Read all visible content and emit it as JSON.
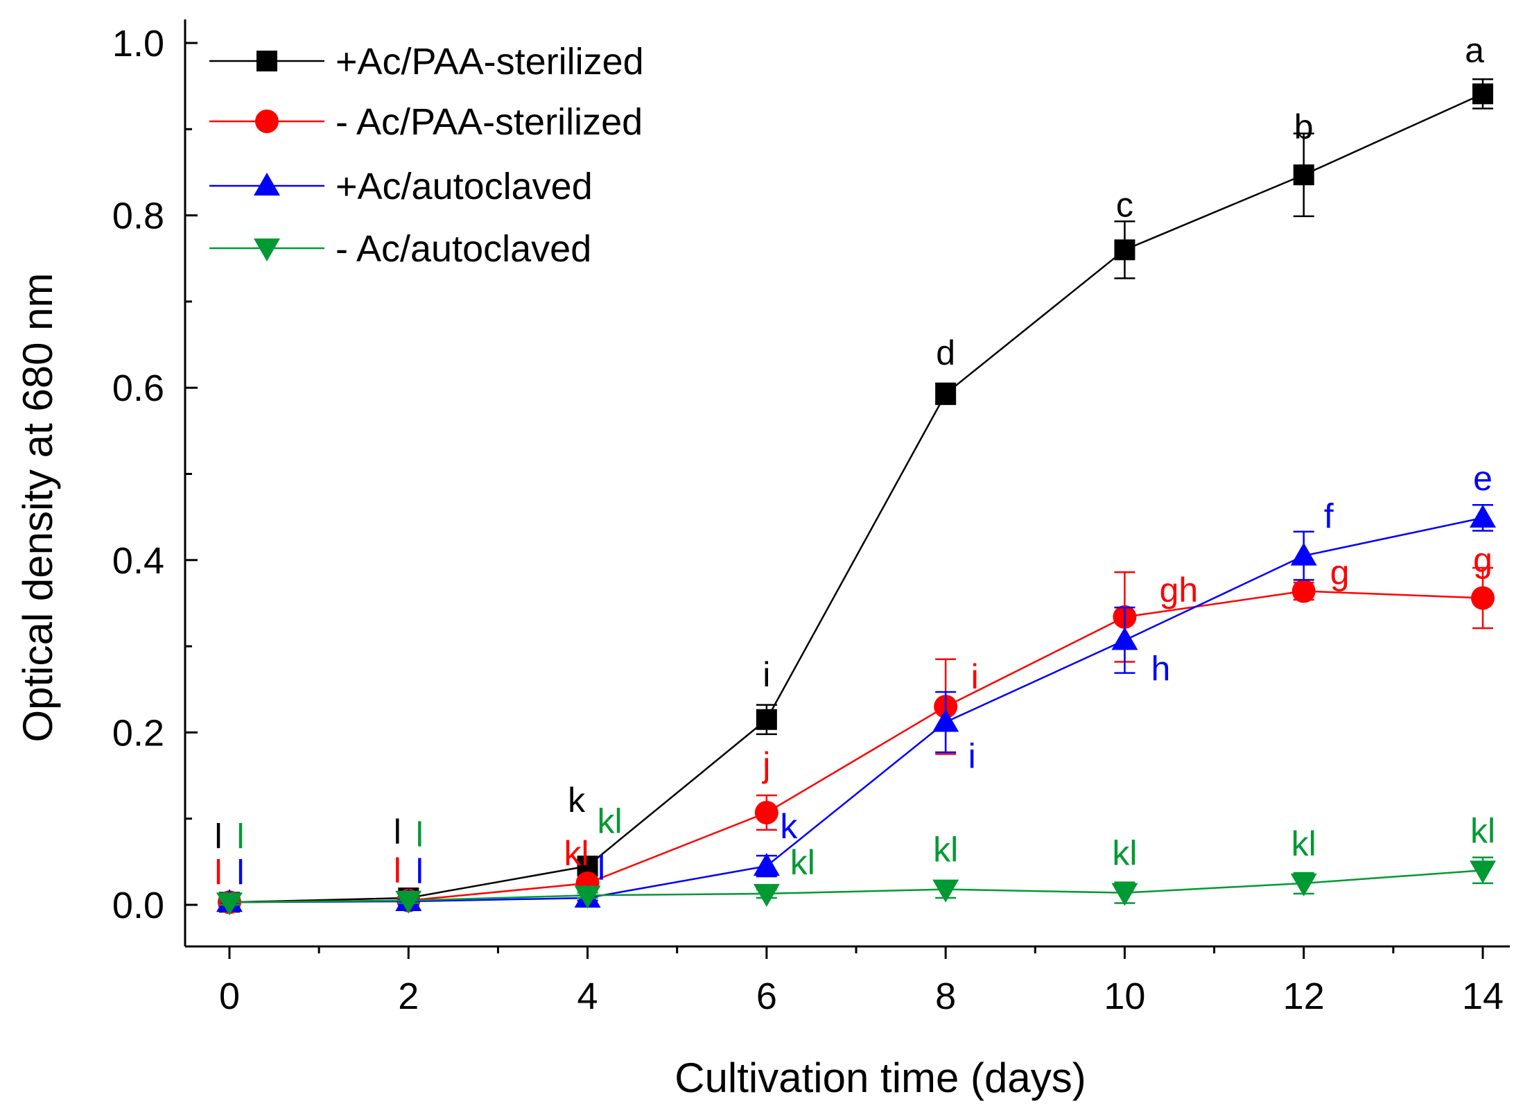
{
  "chart_data": {
    "type": "line",
    "title": "",
    "xlabel": "Cultivation time (days)",
    "ylabel": "Optical density at 680 nm",
    "xlim": [
      -0.5,
      14.3
    ],
    "ylim": [
      -0.05,
      1.0
    ],
    "x_ticks": [
      0,
      2,
      4,
      6,
      8,
      10,
      12,
      14
    ],
    "y_ticks": [
      0.0,
      0.2,
      0.4,
      0.6,
      0.8,
      1.0
    ],
    "x_tick_labels": [
      "0",
      "2",
      "4",
      "6",
      "8",
      "10",
      "12",
      "14"
    ],
    "y_tick_labels": [
      "0.0",
      "0.2",
      "0.4",
      "0.6",
      "0.8",
      "1.0"
    ],
    "legend_position": "top-left",
    "grid": false,
    "x": [
      0,
      2,
      4,
      6,
      8,
      10,
      12,
      14
    ],
    "series": [
      {
        "name": "+Ac/PAA-sterilized",
        "color": "#000000",
        "marker": "square",
        "values": [
          0.003,
          0.008,
          0.045,
          0.215,
          0.593,
          0.76,
          0.847,
          0.941
        ],
        "errors": [
          0.003,
          0.003,
          0.005,
          0.017,
          0.012,
          0.033,
          0.048,
          0.017
        ],
        "letters": [
          "l",
          "l",
          "k",
          "i",
          "d",
          "c",
          "b",
          "a"
        ]
      },
      {
        "name": "- Ac/PAA-sterilized",
        "color": "#ff0000",
        "marker": "circle",
        "values": [
          0.003,
          0.005,
          0.025,
          0.107,
          0.23,
          0.334,
          0.364,
          0.356
        ],
        "errors": [
          0.003,
          0.003,
          0.005,
          0.02,
          0.055,
          0.052,
          0.01,
          0.035
        ],
        "letters": [
          "l",
          "l",
          "kl",
          "j",
          "i",
          "gh",
          "g",
          "g"
        ]
      },
      {
        "name": "+Ac/autoclaved",
        "color": "#0000ff",
        "marker": "triangle-up",
        "values": [
          0.003,
          0.004,
          0.008,
          0.045,
          0.212,
          0.307,
          0.405,
          0.449
        ],
        "errors": [
          0.003,
          0.003,
          0.003,
          0.012,
          0.035,
          0.038,
          0.028,
          0.015
        ],
        "letters": [
          "l",
          "l",
          "l",
          "k",
          "i",
          "h",
          "f",
          "e"
        ]
      },
      {
        "name": "- Ac/autoclaved",
        "color": "#009933",
        "marker": "triangle-down",
        "values": [
          0.003,
          0.005,
          0.011,
          0.013,
          0.018,
          0.014,
          0.025,
          0.04
        ],
        "errors": [
          0.003,
          0.003,
          0.003,
          0.005,
          0.01,
          0.012,
          0.012,
          0.015
        ],
        "letters": [
          "l",
          "l",
          "kl",
          "kl",
          "kl",
          "kl",
          "kl",
          "kl"
        ]
      }
    ]
  }
}
